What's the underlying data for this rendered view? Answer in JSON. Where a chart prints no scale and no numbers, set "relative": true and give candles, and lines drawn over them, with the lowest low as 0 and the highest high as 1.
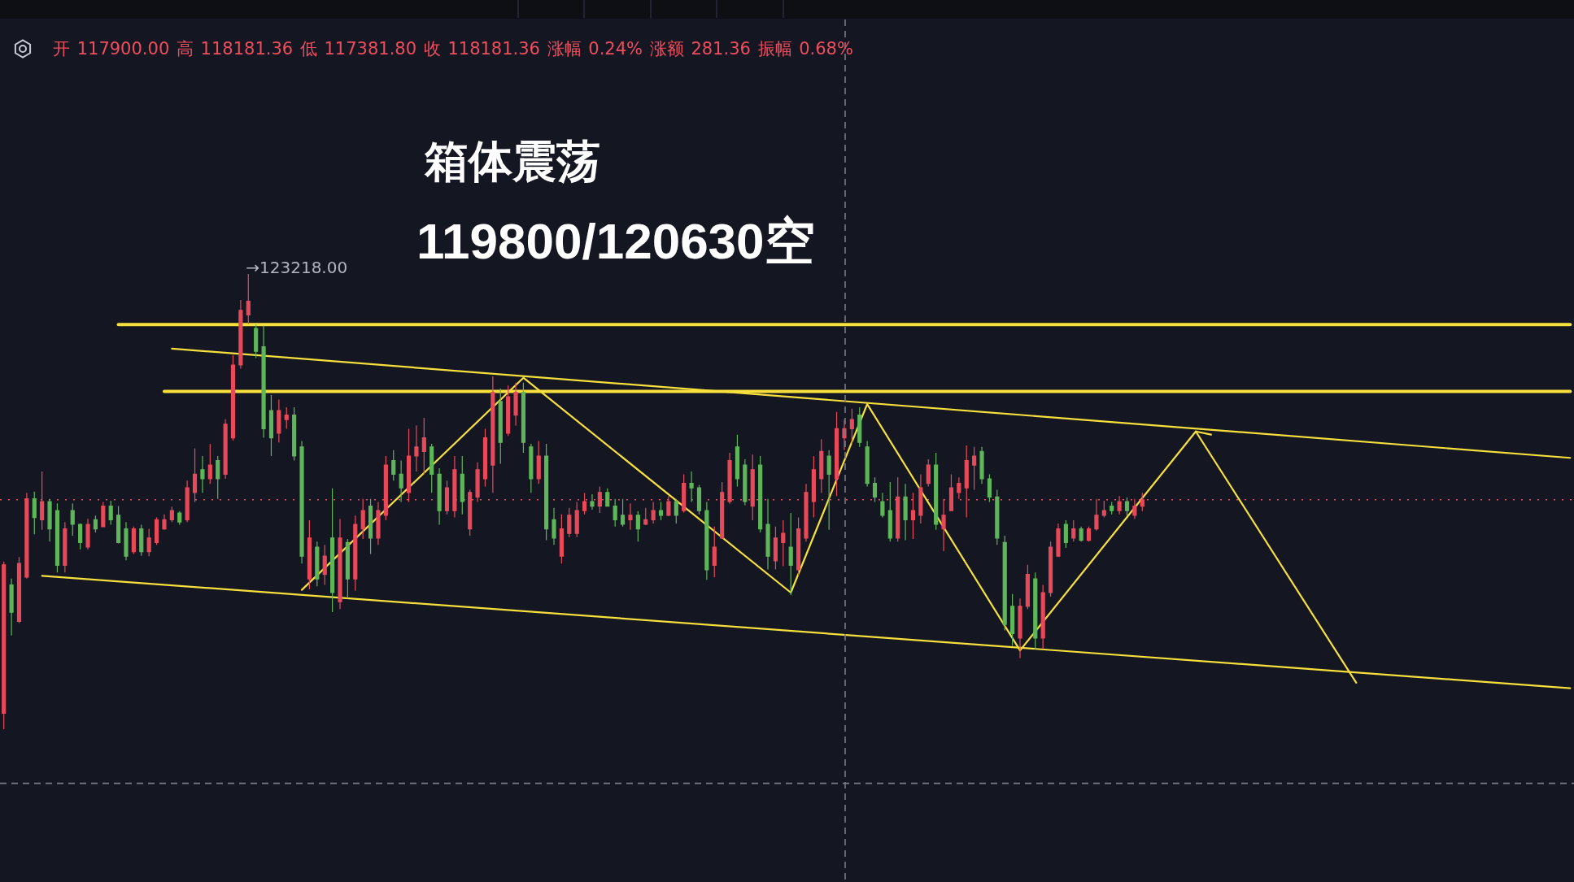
{
  "chart_data": {
    "type": "candlestick",
    "relative": true,
    "title": "箱体震荡",
    "subtitle": "119800/120630空",
    "annotations": [
      "开 117900.00 高 118181.36 低 117381.80 收 118181.36 涨幅 0.24% 涨额 281.36 振幅 0.68%",
      "→123218.00"
    ],
    "categories": [
      null,
      null,
      null,
      null,
      null,
      null,
      null,
      null,
      null,
      null,
      null,
      null,
      null,
      null,
      null,
      null,
      null,
      null,
      null,
      null,
      null,
      null,
      null,
      null,
      null,
      null,
      null,
      null,
      null,
      null,
      null,
      null,
      null,
      null,
      null,
      null,
      null,
      null,
      null,
      null,
      null,
      null,
      null,
      null,
      null,
      null,
      null,
      null,
      null,
      null,
      null,
      null,
      null,
      null,
      null,
      null,
      null,
      null,
      null,
      null,
      null,
      null,
      null,
      null,
      null,
      null,
      null,
      null,
      null,
      null,
      null,
      null,
      null,
      null,
      null,
      null,
      null,
      null,
      null,
      null,
      null,
      null,
      null,
      null,
      null,
      null,
      null,
      null,
      null,
      null,
      null,
      null,
      null,
      null,
      null,
      null,
      null,
      null,
      null,
      null,
      null,
      null,
      null,
      null,
      null,
      null,
      null,
      null,
      null,
      null,
      null,
      null,
      null,
      null,
      null,
      null,
      null,
      null,
      null,
      null,
      null,
      null,
      null,
      null,
      null,
      null,
      null,
      null,
      null,
      null,
      null,
      null,
      null,
      null,
      null,
      null,
      null,
      null,
      null,
      null,
      null,
      null,
      null,
      null,
      null,
      null,
      null,
      null,
      null,
      null,
      null,
      null,
      null,
      null,
      null,
      null,
      null,
      null,
      null,
      null,
      null,
      null,
      null,
      null,
      null,
      null,
      null,
      null,
      null,
      null,
      null,
      null,
      null,
      null,
      null,
      null,
      null,
      null,
      null,
      null,
      null,
      null,
      null,
      null,
      null,
      null,
      null,
      null,
      null,
      null,
      null,
      null,
      null,
      null,
      null,
      null,
      null,
      null,
      null,
      null,
      null,
      null,
      null,
      null,
      null,
      null
    ],
    "ohlc": [
      [
        0.035,
        0.368,
        0,
        0.361
      ],
      [
        0.317,
        0.331,
        0.206,
        0.257
      ],
      [
        0.237,
        0.378,
        0.233,
        0.364
      ],
      [
        0.334,
        0.519,
        0.331,
        0.506
      ],
      [
        0.506,
        0.522,
        0.428,
        0.465
      ],
      [
        0.46,
        0.566,
        0.438,
        0.5
      ],
      [
        0.5,
        0.506,
        0.412,
        0.44
      ],
      [
        0.48,
        0.496,
        0.344,
        0.36
      ],
      [
        0.36,
        0.455,
        0.344,
        0.44
      ],
      [
        0.48,
        0.496,
        0.425,
        0.45
      ],
      [
        0.45,
        0.452,
        0.395,
        0.41
      ],
      [
        0.4,
        0.462,
        0.395,
        0.45
      ],
      [
        0.46,
        0.469,
        0.432,
        0.44
      ],
      [
        0.445,
        0.499,
        0.445,
        0.49
      ],
      [
        0.49,
        0.502,
        0.449,
        0.46
      ],
      [
        0.47,
        0.49,
        0.408,
        0.41
      ],
      [
        0.44,
        0.455,
        0.371,
        0.38
      ],
      [
        0.39,
        0.445,
        0.385,
        0.44
      ],
      [
        0.44,
        0.449,
        0.381,
        0.39
      ],
      [
        0.39,
        0.44,
        0.38,
        0.42
      ],
      [
        0.41,
        0.465,
        0.405,
        0.46
      ],
      [
        0.44,
        0.472,
        0.438,
        0.46
      ],
      [
        0.46,
        0.489,
        0.455,
        0.48
      ],
      [
        0.475,
        0.479,
        0.449,
        0.455
      ],
      [
        0.46,
        0.546,
        0.455,
        0.53
      ],
      [
        0.52,
        0.617,
        0.499,
        0.56
      ],
      [
        0.57,
        0.6,
        0.519,
        0.55
      ],
      [
        0.55,
        0.627,
        0.539,
        0.58
      ],
      [
        0.59,
        0.6,
        0.506,
        0.55
      ],
      [
        0.56,
        0.681,
        0.55,
        0.67
      ],
      [
        0.64,
        0.822,
        0.634,
        0.8
      ],
      [
        0.8,
        0.943,
        0.792,
        0.92
      ],
      [
        0.91,
        1,
        0.89,
        0.94
      ],
      [
        0.88,
        0.889,
        0.815,
        0.83
      ],
      [
        0.84,
        0.886,
        0.64,
        0.66
      ],
      [
        0.7,
        0.734,
        0.6,
        0.64
      ],
      [
        0.65,
        0.724,
        0.63,
        0.7
      ],
      [
        0.68,
        0.707,
        0.66,
        0.69
      ],
      [
        0.69,
        0.707,
        0.59,
        0.6
      ],
      [
        0.62,
        0.633,
        0.364,
        0.38
      ],
      [
        0.33,
        0.459,
        0.307,
        0.42
      ],
      [
        0.4,
        0.412,
        0.314,
        0.33
      ],
      [
        0.34,
        0.405,
        0.317,
        0.38
      ],
      [
        0.42,
        0.529,
        0.257,
        0.3
      ],
      [
        0.28,
        0.462,
        0.264,
        0.42
      ],
      [
        0.41,
        0.418,
        0.287,
        0.33
      ],
      [
        0.33,
        0.469,
        0.304,
        0.45
      ],
      [
        0.44,
        0.506,
        0.418,
        0.48
      ],
      [
        0.49,
        0.506,
        0.385,
        0.42
      ],
      [
        0.42,
        0.499,
        0.405,
        0.48
      ],
      [
        0.47,
        0.6,
        0.459,
        0.58
      ],
      [
        0.59,
        0.613,
        0.546,
        0.56
      ],
      [
        0.56,
        0.59,
        0.499,
        0.53
      ],
      [
        0.52,
        0.66,
        0.499,
        0.6
      ],
      [
        0.6,
        0.667,
        0.566,
        0.62
      ],
      [
        0.61,
        0.684,
        0.56,
        0.64
      ],
      [
        0.62,
        0.627,
        0.519,
        0.56
      ],
      [
        0.56,
        0.573,
        0.449,
        0.48
      ],
      [
        0.48,
        0.546,
        0.472,
        0.53
      ],
      [
        0.48,
        0.6,
        0.465,
        0.57
      ],
      [
        0.56,
        0.6,
        0.472,
        0.5
      ],
      [
        0.44,
        0.526,
        0.425,
        0.52
      ],
      [
        0.51,
        0.586,
        0.499,
        0.57
      ],
      [
        0.55,
        0.66,
        0.533,
        0.64
      ],
      [
        0.58,
        0.775,
        0.519,
        0.74
      ],
      [
        0.72,
        0.748,
        0.583,
        0.63
      ],
      [
        0.65,
        0.755,
        0.644,
        0.73
      ],
      [
        0.69,
        0.761,
        0.667,
        0.74
      ],
      [
        0.74,
        0.761,
        0.607,
        0.63
      ],
      [
        0.62,
        0.627,
        0.519,
        0.55
      ],
      [
        0.55,
        0.633,
        0.539,
        0.6
      ],
      [
        0.6,
        0.627,
        0.415,
        0.44
      ],
      [
        0.46,
        0.486,
        0.405,
        0.42
      ],
      [
        0.38,
        0.472,
        0.364,
        0.44
      ],
      [
        0.43,
        0.486,
        0.422,
        0.47
      ],
      [
        0.43,
        0.499,
        0.422,
        0.48
      ],
      [
        0.48,
        0.519,
        0.472,
        0.5
      ],
      [
        0.5,
        0.516,
        0.482,
        0.49
      ],
      [
        0.49,
        0.533,
        0.475,
        0.52
      ],
      [
        0.52,
        0.529,
        0.489,
        0.49
      ],
      [
        0.49,
        0.506,
        0.445,
        0.46
      ],
      [
        0.47,
        0.506,
        0.445,
        0.45
      ],
      [
        0.46,
        0.496,
        0.438,
        0.47
      ],
      [
        0.47,
        0.479,
        0.412,
        0.44
      ],
      [
        0.45,
        0.486,
        0.448,
        0.46
      ],
      [
        0.46,
        0.499,
        0.452,
        0.48
      ],
      [
        0.48,
        0.499,
        0.459,
        0.47
      ],
      [
        0.47,
        0.512,
        0.468,
        0.5
      ],
      [
        0.5,
        0.506,
        0.452,
        0.47
      ],
      [
        0.48,
        0.56,
        0.476,
        0.54
      ],
      [
        0.54,
        0.566,
        0.499,
        0.53
      ],
      [
        0.53,
        0.536,
        0.472,
        0.48
      ],
      [
        0.48,
        0.499,
        0.328,
        0.35
      ],
      [
        0.36,
        0.445,
        0.334,
        0.4
      ],
      [
        0.42,
        0.543,
        0.418,
        0.52
      ],
      [
        0.5,
        0.607,
        0.495,
        0.59
      ],
      [
        0.62,
        0.647,
        0.533,
        0.55
      ],
      [
        0.58,
        0.593,
        0.492,
        0.5
      ],
      [
        0.49,
        0.603,
        0.459,
        0.57
      ],
      [
        0.58,
        0.6,
        0.432,
        0.44
      ],
      [
        0.45,
        0.506,
        0.351,
        0.38
      ],
      [
        0.37,
        0.445,
        0.351,
        0.42
      ],
      [
        0.41,
        0.459,
        0.358,
        0.43
      ],
      [
        0.4,
        0.475,
        0.294,
        0.36
      ],
      [
        0.35,
        0.465,
        0.338,
        0.44
      ],
      [
        0.42,
        0.539,
        0.412,
        0.52
      ],
      [
        0.5,
        0.6,
        0.465,
        0.57
      ],
      [
        0.55,
        0.637,
        0.519,
        0.61
      ],
      [
        0.6,
        0.613,
        0.438,
        0.56
      ],
      [
        0.55,
        0.697,
        0.512,
        0.66
      ],
      [
        0.64,
        0.68,
        0.613,
        0.66
      ],
      [
        0.66,
        0.704,
        0.627,
        0.68
      ],
      [
        0.69,
        0.707,
        0.62,
        0.63
      ],
      [
        0.62,
        0.633,
        0.533,
        0.54
      ],
      [
        0.54,
        0.553,
        0.499,
        0.51
      ],
      [
        0.5,
        0.519,
        0.465,
        0.47
      ],
      [
        0.48,
        0.543,
        0.412,
        0.42
      ],
      [
        0.42,
        0.553,
        0.412,
        0.51
      ],
      [
        0.51,
        0.539,
        0.415,
        0.46
      ],
      [
        0.46,
        0.519,
        0.418,
        0.48
      ],
      [
        0.47,
        0.56,
        0.452,
        0.53
      ],
      [
        0.54,
        0.593,
        0.533,
        0.58
      ],
      [
        0.58,
        0.607,
        0.438,
        0.45
      ],
      [
        0.44,
        0.506,
        0.391,
        0.47
      ],
      [
        0.48,
        0.56,
        0.479,
        0.53
      ],
      [
        0.52,
        0.553,
        0.506,
        0.54
      ],
      [
        0.53,
        0.623,
        0.465,
        0.59
      ],
      [
        0.58,
        0.62,
        0.526,
        0.6
      ],
      [
        0.61,
        0.62,
        0.539,
        0.55
      ],
      [
        0.55,
        0.56,
        0.499,
        0.51
      ],
      [
        0.51,
        0.526,
        0.405,
        0.42
      ],
      [
        0.41,
        0.425,
        0.217,
        0.23
      ],
      [
        0.27,
        0.297,
        0.183,
        0.21
      ],
      [
        0.2,
        0.287,
        0.156,
        0.27
      ],
      [
        0.27,
        0.361,
        0.264,
        0.34
      ],
      [
        0.33,
        0.344,
        0.176,
        0.2
      ],
      [
        0.2,
        0.317,
        0.176,
        0.3
      ],
      [
        0.3,
        0.412,
        0.291,
        0.4
      ],
      [
        0.38,
        0.452,
        0.378,
        0.44
      ],
      [
        0.45,
        0.459,
        0.398,
        0.41
      ],
      [
        0.42,
        0.459,
        0.412,
        0.44
      ],
      [
        0.44,
        0.445,
        0.412,
        0.415
      ],
      [
        0.415,
        0.445,
        0.412,
        0.44
      ],
      [
        0.44,
        0.506,
        0.436,
        0.47
      ],
      [
        0.47,
        0.502,
        0.465,
        0.48
      ],
      [
        0.49,
        0.499,
        0.472,
        0.48
      ],
      [
        0.48,
        0.512,
        0.472,
        0.5
      ],
      [
        0.5,
        0.509,
        0.469,
        0.48
      ],
      [
        0.47,
        0.506,
        0.462,
        0.49
      ],
      [
        0.49,
        0.519,
        0.479,
        0.504
      ],
      null,
      null,
      null,
      null,
      null,
      null,
      null,
      null,
      null,
      null,
      null,
      null,
      null,
      null,
      null,
      null,
      null,
      null,
      null,
      null,
      null,
      null,
      null,
      null,
      null,
      null,
      null,
      null,
      null,
      null,
      null,
      null,
      null,
      null,
      null,
      null,
      null,
      null,
      null,
      null,
      null,
      null,
      null,
      null,
      null,
      null,
      null,
      null,
      null,
      null,
      null,
      null,
      null,
      null,
      null,
      null
    ],
    "colors": [
      "#e84a5a",
      "#5fb65a",
      "#e84a5a",
      "#e84a5a",
      "#5fb65a",
      "#e84a5a",
      "#5fb65a",
      "#5fb65a",
      "#e84a5a",
      "#5fb65a",
      "#5fb65a",
      "#e84a5a",
      "#5fb65a",
      "#e84a5a",
      "#5fb65a",
      "#5fb65a",
      "#5fb65a",
      "#e84a5a",
      "#5fb65a",
      "#e84a5a",
      "#e84a5a",
      "#e84a5a",
      "#e84a5a",
      "#5fb65a",
      "#e84a5a",
      "#e84a5a",
      "#5fb65a",
      "#e84a5a",
      "#5fb65a",
      "#e84a5a",
      "#e84a5a",
      "#e84a5a",
      "#e84a5a",
      "#5fb65a",
      "#5fb65a",
      "#5fb65a",
      "#e84a5a",
      "#e84a5a",
      "#5fb65a",
      "#5fb65a",
      "#e84a5a",
      "#5fb65a",
      "#e84a5a",
      "#5fb65a",
      "#e84a5a",
      "#5fb65a",
      "#e84a5a",
      "#e84a5a",
      "#5fb65a",
      "#e84a5a",
      "#e84a5a",
      "#5fb65a",
      "#5fb65a",
      "#e84a5a",
      "#e84a5a",
      "#e84a5a",
      "#5fb65a",
      "#5fb65a",
      "#e84a5a",
      "#e84a5a",
      "#5fb65a",
      "#e84a5a",
      "#e84a5a",
      "#e84a5a",
      "#e84a5a",
      "#5fb65a",
      "#e84a5a",
      "#e84a5a",
      "#5fb65a",
      "#5fb65a",
      "#e84a5a",
      "#5fb65a",
      "#5fb65a",
      "#e84a5a",
      "#e84a5a",
      "#e84a5a",
      "#e84a5a",
      "#5fb65a",
      "#e84a5a",
      "#5fb65a",
      "#5fb65a",
      "#5fb65a",
      "#e84a5a",
      "#5fb65a",
      "#e84a5a",
      "#e84a5a",
      "#5fb65a",
      "#e84a5a",
      "#5fb65a",
      "#e84a5a",
      "#5fb65a",
      "#5fb65a",
      "#5fb65a",
      "#e84a5a",
      "#e84a5a",
      "#e84a5a",
      "#5fb65a",
      "#5fb65a",
      "#e84a5a",
      "#5fb65a",
      "#5fb65a",
      "#e84a5a",
      "#e84a5a",
      "#5fb65a",
      "#e84a5a",
      "#e84a5a",
      "#e84a5a",
      "#e84a5a",
      "#5fb65a",
      "#e84a5a",
      "#e84a5a",
      "#e84a5a",
      "#5fb65a",
      "#5fb65a",
      "#5fb65a",
      "#5fb65a",
      "#5fb65a",
      "#e84a5a",
      "#5fb65a",
      "#e84a5a",
      "#e84a5a",
      "#e84a5a",
      "#5fb65a",
      "#e84a5a",
      "#e84a5a",
      "#e84a5a",
      "#e84a5a",
      "#e84a5a",
      "#5fb65a",
      "#5fb65a",
      "#5fb65a",
      "#5fb65a",
      "#5fb65a",
      "#e84a5a",
      "#e84a5a",
      "#5fb65a",
      "#e84a5a",
      "#e84a5a",
      "#e84a5a",
      "#5fb65a",
      "#e84a5a",
      "#5fb65a",
      "#e84a5a",
      "#e84a5a",
      "#e84a5a",
      "#5fb65a",
      "#e84a5a",
      "#5fb65a",
      "#e84a5a",
      "#e84a5a",
      null,
      null,
      null,
      null,
      null,
      null,
      null,
      null,
      null,
      null,
      null,
      null,
      null,
      null,
      null,
      null,
      null,
      null,
      null,
      null,
      null,
      null,
      null,
      null,
      null,
      null,
      null,
      null,
      null,
      null,
      null,
      null,
      null,
      null,
      null,
      null,
      null,
      null,
      null,
      null,
      null,
      null,
      null,
      null,
      null,
      null,
      null,
      null,
      null,
      null,
      null,
      null,
      null,
      null,
      null,
      null
    ],
    "series": [
      {
        "type": "line",
        "color": "#f7e03c",
        "values": [
          null,
          null,
          null,
          null,
          null,
          null,
          null,
          null,
          null,
          null,
          null,
          null,
          null,
          null,
          null,
          0.889,
          null,
          null,
          null,
          null,
          null,
          null,
          null,
          null,
          null,
          null,
          null,
          null,
          null,
          null,
          null,
          null,
          null,
          null,
          null,
          null,
          null,
          null,
          null,
          null,
          null,
          null,
          null,
          null,
          null,
          null,
          null,
          null,
          null,
          null,
          null,
          null,
          null,
          null,
          null,
          null,
          null,
          null,
          null,
          null,
          null,
          null,
          null,
          null,
          null,
          null,
          null,
          null,
          null,
          null,
          null,
          null,
          null,
          null,
          null,
          null,
          null,
          null,
          null,
          null,
          null,
          null,
          null,
          null,
          null,
          null,
          null,
          null,
          null,
          null,
          null,
          null,
          null,
          null,
          null,
          null,
          null,
          null,
          null,
          null,
          null,
          null,
          null,
          null,
          null,
          null,
          null,
          null,
          null,
          null,
          null,
          null,
          null,
          null,
          null,
          null,
          null,
          null,
          null,
          null,
          null,
          null,
          null,
          null,
          null,
          null,
          null,
          null,
          null,
          null,
          null,
          null,
          null,
          null,
          null,
          null,
          null,
          null,
          null,
          null,
          null,
          null,
          null,
          null,
          null,
          null,
          null,
          null,
          null,
          null,
          null,
          null,
          null,
          null,
          null,
          null,
          null,
          null,
          null,
          null,
          null,
          null,
          null,
          null,
          null,
          null,
          null,
          null,
          null,
          null,
          null,
          null,
          null,
          null,
          null,
          null,
          null,
          null,
          null,
          null,
          null,
          null,
          null,
          null,
          null,
          null,
          null,
          null,
          null,
          null,
          null,
          null,
          null,
          null,
          null,
          null,
          null,
          null,
          null,
          null,
          null,
          null,
          null,
          null,
          null,
          0.889
        ]
      },
      {
        "type": "line",
        "color": "#f7e03c",
        "values": [
          null,
          null,
          null,
          null,
          null,
          null,
          null,
          null,
          null,
          null,
          null,
          null,
          null,
          null,
          null,
          null,
          null,
          null,
          null,
          null,
          null,
          0.742,
          null,
          null,
          null,
          null,
          null,
          null,
          null,
          null,
          null,
          null,
          null,
          null,
          null,
          null,
          null,
          null,
          null,
          null,
          null,
          null,
          null,
          null,
          null,
          null,
          null,
          null,
          null,
          null,
          null,
          null,
          null,
          null,
          null,
          null,
          null,
          null,
          null,
          null,
          null,
          null,
          null,
          null,
          null,
          null,
          null,
          null,
          null,
          null,
          null,
          null,
          null,
          null,
          null,
          null,
          null,
          null,
          null,
          null,
          null,
          null,
          null,
          null,
          null,
          null,
          null,
          null,
          null,
          null,
          null,
          null,
          null,
          null,
          null,
          null,
          null,
          null,
          null,
          null,
          null,
          null,
          null,
          null,
          null,
          null,
          null,
          null,
          null,
          null,
          null,
          null,
          null,
          null,
          null,
          null,
          null,
          null,
          null,
          null,
          null,
          null,
          null,
          null,
          null,
          null,
          null,
          null,
          null,
          null,
          null,
          null,
          null,
          null,
          null,
          null,
          null,
          null,
          null,
          null,
          null,
          null,
          null,
          null,
          null,
          null,
          null,
          null,
          null,
          null,
          null,
          null,
          null,
          null,
          null,
          null,
          null,
          null,
          null,
          null,
          null,
          null,
          null,
          null,
          null,
          null,
          null,
          null,
          null,
          null,
          null,
          null,
          null,
          null,
          null,
          null,
          null,
          null,
          null,
          null,
          null,
          null,
          null,
          null,
          null,
          null,
          null,
          null,
          null,
          null,
          null,
          null,
          null,
          null,
          null,
          null,
          null,
          null,
          null,
          null,
          null,
          null,
          null,
          null,
          null,
          0.742
        ]
      },
      {
        "type": "line",
        "color": "#f7e03c",
        "values": [
          null,
          null,
          null,
          null,
          null,
          null,
          null,
          null,
          null,
          null,
          null,
          null,
          null,
          null,
          null,
          null,
          null,
          null,
          null,
          null,
          null,
          null,
          0.836,
          null,
          null,
          null,
          null,
          null,
          null,
          null,
          null,
          null,
          null,
          null,
          null,
          null,
          null,
          null,
          null,
          null,
          null,
          null,
          null,
          null,
          null,
          null,
          null,
          null,
          null,
          null,
          null,
          null,
          null,
          null,
          null,
          null,
          null,
          null,
          null,
          null,
          null,
          null,
          null,
          null,
          null,
          null,
          null,
          null,
          null,
          null,
          null,
          null,
          null,
          null,
          null,
          null,
          null,
          null,
          null,
          null,
          null,
          null,
          null,
          null,
          null,
          null,
          null,
          null,
          null,
          null,
          null,
          null,
          null,
          null,
          null,
          null,
          null,
          null,
          null,
          null,
          null,
          null,
          null,
          null,
          null,
          null,
          null,
          null,
          null,
          null,
          null,
          null,
          null,
          null,
          null,
          null,
          null,
          null,
          null,
          null,
          null,
          null,
          null,
          null,
          null,
          null,
          null,
          null,
          null,
          null,
          null,
          null,
          null,
          null,
          null,
          null,
          null,
          null,
          null,
          null,
          null,
          null,
          null,
          null,
          null,
          null,
          null,
          null,
          null,
          null,
          null,
          null,
          null,
          null,
          null,
          null,
          null,
          null,
          null,
          null,
          null,
          null,
          null,
          null,
          null,
          null,
          null,
          null,
          null,
          null,
          null,
          null,
          null,
          null,
          null,
          null,
          null,
          null,
          null,
          null,
          null,
          null,
          null,
          null,
          null,
          null,
          null,
          null,
          null,
          null,
          null,
          null,
          null,
          null,
          null,
          null,
          null,
          null,
          null,
          null,
          null,
          null,
          null,
          null,
          null,
          0.596
        ]
      },
      {
        "type": "line",
        "color": "#f7e03c",
        "values": [
          null,
          null,
          null,
          null,
          null,
          0.337,
          null,
          null,
          null,
          null,
          null,
          null,
          null,
          null,
          null,
          null,
          null,
          null,
          null,
          null,
          null,
          null,
          null,
          null,
          null,
          null,
          null,
          null,
          null,
          null,
          null,
          null,
          null,
          null,
          null,
          null,
          null,
          null,
          null,
          null,
          null,
          null,
          null,
          null,
          null,
          null,
          null,
          null,
          null,
          null,
          null,
          null,
          null,
          null,
          null,
          null,
          null,
          null,
          null,
          null,
          null,
          null,
          null,
          null,
          null,
          null,
          null,
          null,
          null,
          null,
          null,
          null,
          null,
          null,
          null,
          null,
          null,
          null,
          null,
          null,
          null,
          null,
          null,
          null,
          null,
          null,
          null,
          null,
          null,
          null,
          null,
          null,
          null,
          null,
          null,
          null,
          null,
          null,
          null,
          null,
          null,
          null,
          null,
          null,
          null,
          null,
          null,
          null,
          null,
          null,
          null,
          null,
          null,
          null,
          null,
          null,
          null,
          null,
          null,
          null,
          null,
          null,
          null,
          null,
          null,
          null,
          null,
          null,
          null,
          null,
          null,
          null,
          null,
          null,
          null,
          null,
          null,
          null,
          null,
          null,
          null,
          null,
          null,
          null,
          null,
          null,
          null,
          null,
          null,
          null,
          null,
          null,
          null,
          null,
          null,
          null,
          null,
          null,
          null,
          null,
          null,
          null,
          null,
          null,
          null,
          null,
          null,
          null,
          null,
          null,
          null,
          null,
          null,
          null,
          null,
          null,
          null,
          null,
          null,
          null,
          null,
          null,
          null,
          null,
          null,
          null,
          null,
          null,
          null,
          null,
          null,
          null,
          null,
          null,
          null,
          null,
          null,
          null,
          null,
          null,
          null,
          null,
          null,
          null,
          null,
          0.09
        ]
      },
      {
        "type": "line",
        "color": "#f7e03c",
        "values": [
          null,
          null,
          null,
          null,
          null,
          null,
          null,
          null,
          null,
          null,
          null,
          null,
          null,
          null,
          null,
          null,
          null,
          null,
          null,
          null,
          null,
          null,
          null,
          null,
          null,
          null,
          null,
          null,
          null,
          null,
          null,
          null,
          null,
          null,
          null,
          null,
          null,
          null,
          null,
          0.306,
          null,
          null,
          null,
          null,
          null,
          null,
          null,
          null,
          null,
          null,
          null,
          null,
          null,
          null,
          null,
          null,
          null,
          null,
          null,
          null,
          null,
          null,
          null,
          null,
          null,
          null,
          null,
          null,
          0.772,
          null,
          null,
          null,
          null,
          null,
          null,
          null,
          null,
          null,
          null,
          null,
          null,
          null,
          null,
          null,
          null,
          null,
          null,
          null,
          null,
          null,
          null,
          null,
          null,
          null,
          null,
          null,
          null,
          null,
          null,
          null,
          null,
          null,
          null,
          0.3,
          null,
          null,
          null,
          null,
          null,
          null,
          null,
          null,
          null,
          0.714,
          null,
          null,
          null,
          null,
          null,
          null,
          null,
          null,
          null,
          null,
          null,
          null,
          null,
          null,
          null,
          null,
          null,
          null,
          null,
          0.173,
          null,
          null,
          null,
          null,
          null,
          null,
          null,
          null,
          null,
          null,
          null,
          null,
          null,
          null,
          null,
          null,
          null,
          null,
          null,
          null,
          null,
          null,
          0.654,
          null,
          null,
          null,
          null,
          null,
          null,
          null,
          null,
          null,
          null,
          null,
          null,
          null,
          null,
          null,
          null,
          null,
          null,
          null,
          null,
          0.102,
          null,
          null,
          null,
          null,
          null,
          null,
          null,
          null,
          null,
          null,
          null,
          null,
          null,
          null,
          null,
          null,
          null,
          null,
          null,
          null,
          null,
          null,
          null,
          null,
          null,
          null,
          null,
          null
        ]
      },
      {
        "type": "line",
        "color": "#f7e03c",
        "values": [
          null,
          null,
          null,
          null,
          null,
          null,
          null,
          null,
          null,
          null,
          null,
          null,
          null,
          null,
          null,
          null,
          null,
          null,
          null,
          null,
          null,
          null,
          null,
          null,
          null,
          null,
          null,
          null,
          null,
          null,
          null,
          null,
          null,
          null,
          null,
          null,
          null,
          null,
          null,
          null,
          null,
          null,
          null,
          null,
          null,
          null,
          null,
          null,
          null,
          null,
          null,
          null,
          null,
          null,
          null,
          null,
          null,
          null,
          null,
          null,
          null,
          null,
          null,
          null,
          null,
          null,
          null,
          null,
          null,
          null,
          null,
          null,
          null,
          null,
          null,
          null,
          null,
          null,
          null,
          null,
          null,
          null,
          null,
          null,
          null,
          null,
          null,
          null,
          null,
          null,
          null,
          null,
          null,
          null,
          null,
          null,
          null,
          null,
          null,
          null,
          null,
          null,
          null,
          null,
          null,
          null,
          null,
          null,
          null,
          null,
          null,
          null,
          null,
          null,
          null,
          null,
          null,
          null,
          null,
          null,
          null,
          null,
          null,
          null,
          null,
          null,
          null,
          null,
          null,
          null,
          null,
          null,
          null,
          null,
          null,
          null,
          null,
          null,
          null,
          null,
          null,
          null,
          null,
          null,
          null,
          null,
          null,
          null,
          null,
          null,
          null,
          null,
          null,
          null,
          null,
          null,
          0.654,
          null,
          0.647,
          null,
          null,
          null,
          null,
          null,
          null,
          null,
          null,
          null,
          null,
          null,
          null,
          null,
          null,
          null,
          null,
          null,
          null,
          null,
          null,
          null,
          null,
          null,
          null,
          null,
          null,
          null,
          null,
          null,
          null,
          null,
          null,
          null,
          null,
          null,
          null,
          null,
          null,
          null,
          null,
          null,
          null,
          null,
          null,
          null,
          null,
          null
        ]
      }
    ],
    "ref_lines": [
      {
        "axis": "y",
        "value": 0.504,
        "color": "#e84a5a",
        "line_style": "dotted"
      },
      {
        "axis": "y",
        "value": -0.119,
        "color": "#787b86",
        "line_style": "dashed"
      }
    ]
  }
}
